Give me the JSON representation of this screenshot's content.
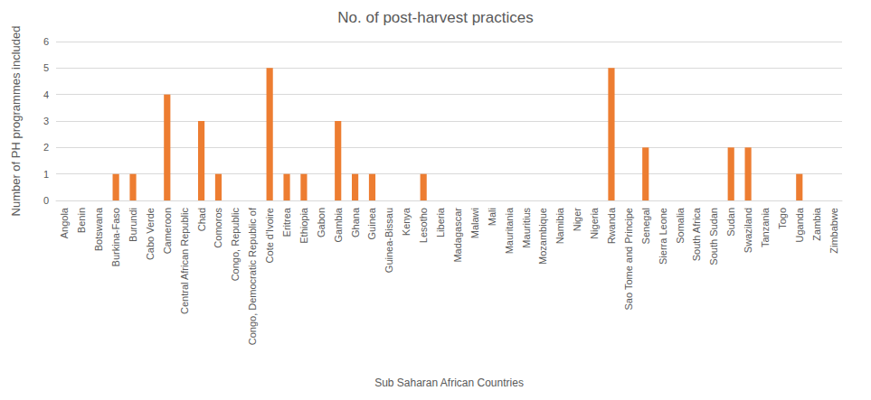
{
  "chart_data": {
    "type": "bar",
    "title": "No. of post-harvest practices",
    "x_label": "Sub Saharan African Countries",
    "y_label": "Number of PH programmes included",
    "categories": [
      "Angola",
      "Benin",
      "Botswana",
      "Burkina-Faso",
      "Burundi",
      "Cabo Verde",
      "Cameroon",
      "Central African Republic",
      "Chad",
      "Comoros",
      "Congo, Republic",
      "Congo, Democratic Republic of",
      "Cote d'Ivoire",
      "Eritrea",
      "Ethiopia",
      "Gabon",
      "Gambia",
      "Ghana",
      "Guinea",
      "Guinea-Bissau",
      "Kenya",
      "Lesotho",
      "Liberia",
      "Madagascar",
      "Malawi",
      "Mali",
      "Mauritania",
      "Mauritius",
      "Mozambique",
      "Namibia",
      "Niger",
      "Nigeria",
      "Rwanda",
      "Sao Tome and Principe",
      "Senegal",
      "Sierra Leone",
      "Somalia",
      "South Africa",
      "South Sudan",
      "Sudan",
      "Swaziland",
      "Tanzania",
      "Togo",
      "Uganda",
      "Zambia",
      "Zimbabwe"
    ],
    "values": [
      0,
      0,
      0,
      1,
      1,
      0,
      4,
      0,
      3,
      1,
      0,
      0,
      5,
      1,
      1,
      0,
      3,
      1,
      1,
      0,
      0,
      1,
      0,
      0,
      0,
      0,
      0,
      0,
      0,
      0,
      0,
      0,
      5,
      0,
      2,
      0,
      0,
      0,
      0,
      2,
      2,
      0,
      0,
      1,
      0,
      0
    ],
    "color": "#ed7d31",
    "ylim": [
      0,
      6
    ],
    "yticks": [
      0,
      1,
      2,
      3,
      4,
      5,
      6
    ],
    "grid": true
  }
}
